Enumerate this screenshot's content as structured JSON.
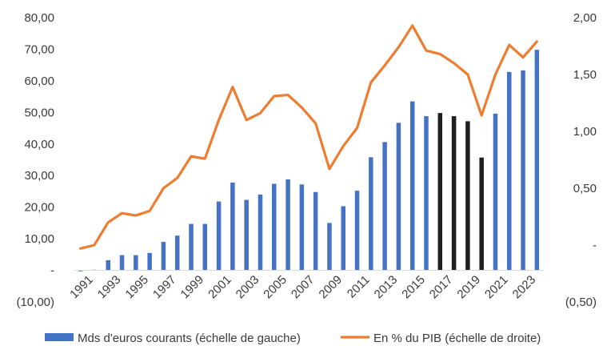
{
  "chart_data": {
    "type": "bar",
    "title": "",
    "categories": [
      "1991",
      "1992",
      "1993",
      "1994",
      "1995",
      "1996",
      "1997",
      "1998",
      "1999",
      "2000",
      "2001",
      "2002",
      "2003",
      "2004",
      "2005",
      "2006",
      "2007",
      "2008",
      "2009",
      "2010",
      "2011",
      "2012",
      "2013",
      "2014",
      "2015",
      "2016",
      "2017",
      "2018",
      "2019",
      "2020",
      "2021",
      "2022",
      "2023",
      "2024"
    ],
    "x_tick_labels": [
      "1991",
      "1993",
      "1995",
      "1997",
      "1999",
      "2001",
      "2003",
      "2005",
      "2007",
      "2009",
      "2011",
      "2013",
      "2015",
      "2017",
      "2019",
      "2021",
      "2023"
    ],
    "left_axis": {
      "range": [
        -10,
        80
      ],
      "tick_labels": [
        "(10,00)",
        "-",
        "10,00",
        "20,00",
        "30,00",
        "40,00",
        "50,00",
        "60,00",
        "70,00",
        "80,00"
      ],
      "tick_values": [
        -10,
        0,
        10,
        20,
        30,
        40,
        50,
        60,
        70,
        80
      ]
    },
    "right_axis": {
      "range": [
        -0.5,
        2.0
      ],
      "tick_labels": [
        "(0,50)",
        "-",
        "0,50",
        "1,00",
        "1,50",
        "2,00"
      ],
      "tick_values": [
        -0.5,
        0,
        0.5,
        1.0,
        1.5,
        2.0
      ]
    },
    "series": [
      {
        "name": "Mds d'euros courants (échelle de gauche)",
        "kind": "bar",
        "axis": "left",
        "color": "#4472C4",
        "highlight_color": "#1f1f1f",
        "highlight_categories": [
          "2017",
          "2018",
          "2019",
          "2020"
        ],
        "values": [
          -0.3,
          0.2,
          3.2,
          4.8,
          4.8,
          5.5,
          9.0,
          11.0,
          14.7,
          14.7,
          21.8,
          27.8,
          22.3,
          24.0,
          27.4,
          28.8,
          27.2,
          24.8,
          15.0,
          20.3,
          25.2,
          35.8,
          40.6,
          46.7,
          53.5,
          48.8,
          49.8,
          48.8,
          47.2,
          35.7,
          49.6,
          62.8,
          63.3,
          69.8
        ]
      },
      {
        "name": "En % du PIB (échelle de droite)",
        "kind": "line",
        "axis": "right",
        "color": "#ED7D31",
        "values": [
          -0.03,
          0.0,
          0.2,
          0.28,
          0.26,
          0.3,
          0.5,
          0.59,
          0.78,
          0.76,
          1.1,
          1.39,
          1.1,
          1.16,
          1.31,
          1.32,
          1.21,
          1.07,
          0.67,
          0.87,
          1.03,
          1.43,
          1.58,
          1.74,
          1.93,
          1.71,
          1.68,
          1.6,
          1.5,
          1.14,
          1.5,
          1.76,
          1.65,
          1.79
        ]
      }
    ],
    "grid": false,
    "legend": "bottom"
  }
}
